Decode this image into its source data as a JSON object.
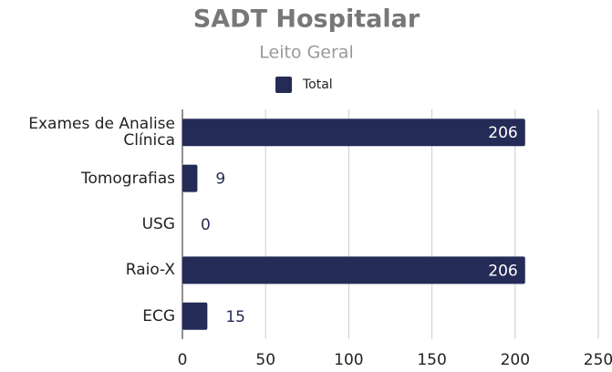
{
  "chart_data": {
    "type": "barh",
    "title": "SADT Hospitalar",
    "subtitle": "Leito Geral",
    "categories": [
      "Exames de Analise Clínica",
      "Tomografias",
      "USG",
      "Raio-X",
      "ECG"
    ],
    "series": [
      {
        "name": "Total",
        "color": "#252b57",
        "values": [
          206,
          9,
          0,
          206,
          15
        ]
      }
    ],
    "xlim": [
      0,
      250
    ],
    "xticks": [
      0,
      50,
      100,
      150,
      200,
      250
    ],
    "grid": true,
    "legend": "top"
  }
}
